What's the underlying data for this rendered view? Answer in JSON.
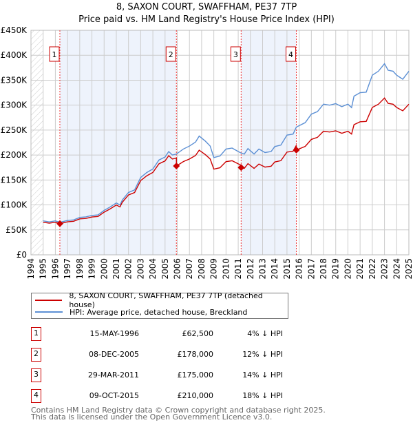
{
  "chart_data": {
    "type": "line",
    "title": "8, SAXON COURT, SWAFFHAM, PE37 7TP",
    "subtitle": "Price paid vs. HM Land Registry's House Price Index (HPI)",
    "xlim": [
      1994,
      2025
    ],
    "ylim": [
      0,
      450000
    ],
    "y_ticks": [
      {
        "v": 0,
        "label": "£0"
      },
      {
        "v": 50000,
        "label": "£50K"
      },
      {
        "v": 100000,
        "label": "£100K"
      },
      {
        "v": 150000,
        "label": "£150K"
      },
      {
        "v": 200000,
        "label": "£200K"
      },
      {
        "v": 250000,
        "label": "£250K"
      },
      {
        "v": 300000,
        "label": "£300K"
      },
      {
        "v": 350000,
        "label": "£350K"
      },
      {
        "v": 400000,
        "label": "£400K"
      },
      {
        "v": 450000,
        "label": "£450K"
      }
    ],
    "x_ticks": [
      "1994",
      "1995",
      "1996",
      "1997",
      "1998",
      "1999",
      "2000",
      "2001",
      "2002",
      "2003",
      "2004",
      "2005",
      "2006",
      "2007",
      "2008",
      "2009",
      "2010",
      "2011",
      "2012",
      "2013",
      "2014",
      "2015",
      "2016",
      "2017",
      "2018",
      "2019",
      "2020",
      "2021",
      "2022",
      "2023",
      "2024",
      "2025"
    ],
    "grid": true,
    "colors": {
      "property": "#cc0000",
      "hpi": "#5b8fd4",
      "band": "#eef3fc",
      "grid": "#cccccc"
    },
    "hpi": [
      [
        1995,
        68
      ],
      [
        1995.5,
        66
      ],
      [
        1996,
        68
      ],
      [
        1996.37,
        65.1
      ],
      [
        1997,
        69
      ],
      [
        1997.5,
        70
      ],
      [
        1998,
        75
      ],
      [
        1998.5,
        76
      ],
      [
        1999,
        79
      ],
      [
        1999.5,
        80
      ],
      [
        2000,
        89
      ],
      [
        2000.5,
        96
      ],
      [
        2001,
        104
      ],
      [
        2001.3,
        100
      ],
      [
        2001.5,
        110
      ],
      [
        2002,
        125
      ],
      [
        2002.5,
        130
      ],
      [
        2003,
        155
      ],
      [
        2003.5,
        165
      ],
      [
        2004,
        172
      ],
      [
        2004.5,
        190
      ],
      [
        2005,
        196
      ],
      [
        2005.3,
        207
      ],
      [
        2005.6,
        200
      ],
      [
        2005.93,
        202
      ],
      [
        2006.5,
        212
      ],
      [
        2007,
        218
      ],
      [
        2007.5,
        226
      ],
      [
        2007.8,
        238
      ],
      [
        2008.3,
        228
      ],
      [
        2008.7,
        218
      ],
      [
        2009,
        195
      ],
      [
        2009.5,
        198
      ],
      [
        2010,
        212
      ],
      [
        2010.5,
        214
      ],
      [
        2011,
        207
      ],
      [
        2011.24,
        204
      ],
      [
        2011.5,
        202
      ],
      [
        2011.8,
        213
      ],
      [
        2012.3,
        202
      ],
      [
        2012.7,
        212
      ],
      [
        2013.2,
        205
      ],
      [
        2013.7,
        207
      ],
      [
        2014,
        217
      ],
      [
        2014.5,
        220
      ],
      [
        2015,
        240
      ],
      [
        2015.5,
        242
      ],
      [
        2015.77,
        256
      ],
      [
        2016.5,
        265
      ],
      [
        2017,
        282
      ],
      [
        2017.5,
        287
      ],
      [
        2018,
        302
      ],
      [
        2018.5,
        300
      ],
      [
        2019,
        303
      ],
      [
        2019.5,
        297
      ],
      [
        2020,
        302
      ],
      [
        2020.3,
        295
      ],
      [
        2020.5,
        318
      ],
      [
        2021,
        325
      ],
      [
        2021.5,
        326
      ],
      [
        2022,
        360
      ],
      [
        2022.5,
        368
      ],
      [
        2023,
        383
      ],
      [
        2023.3,
        370
      ],
      [
        2023.7,
        368
      ],
      [
        2024,
        360
      ],
      [
        2024.5,
        352
      ],
      [
        2025,
        368
      ]
    ],
    "hpi_units": "£ thousands",
    "legend": {
      "property": "8, SAXON COURT, SWAFFHAM, PE37 7TP (detached house)",
      "hpi": "HPI: Average price, detached house, Breckland"
    },
    "sales": [
      {
        "n": "1",
        "t": 1996.37,
        "date": "15-MAY-1996",
        "price": 62500,
        "price_label": "£62,500",
        "hpi_label": "4% ↓ HPI"
      },
      {
        "n": "2",
        "t": 2005.93,
        "date": "08-DEC-2005",
        "price": 178000,
        "price_label": "£178,000",
        "hpi_label": "12% ↓ HPI"
      },
      {
        "n": "3",
        "t": 2011.24,
        "date": "29-MAR-2011",
        "price": 175000,
        "price_label": "£175,000",
        "hpi_label": "14% ↓ HPI"
      },
      {
        "n": "4",
        "t": 2015.77,
        "date": "09-OCT-2015",
        "price": 210000,
        "price_label": "£210,000",
        "hpi_label": "18% ↓ HPI"
      }
    ]
  },
  "footer": {
    "line1": "Contains HM Land Registry data © Crown copyright and database right 2025.",
    "line2": "This data is licensed under the Open Government Licence v3.0."
  }
}
